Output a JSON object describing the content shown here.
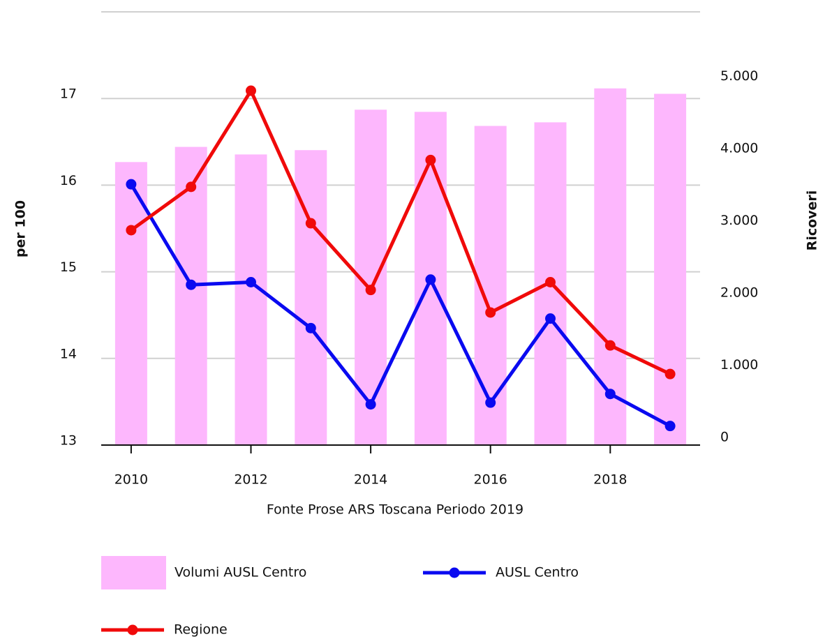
{
  "chart_data": {
    "type": "bar-line",
    "x_label": "Fonte Prose ARS Toscana Periodo 2019",
    "y_label": "per 100",
    "y2_label": "Ricoveri",
    "x": [
      2010,
      2011,
      2012,
      2013,
      2014,
      2015,
      2016,
      2017,
      2018,
      2019
    ],
    "xlim": [
      2009.5,
      2019.5
    ],
    "xticks": [
      2010,
      2012,
      2014,
      2016,
      2018
    ],
    "ylim": [
      13,
      18
    ],
    "yticks": [
      13,
      14,
      15,
      16,
      17
    ],
    "y2lim": [
      0,
      6000
    ],
    "y2ticks": [
      0,
      {
        "value": 1000,
        "label": "1.000"
      },
      {
        "value": 2000,
        "label": "2.000"
      },
      {
        "value": 3000,
        "label": "3.000"
      },
      {
        "value": 4000,
        "label": "4.000"
      },
      {
        "value": 5000,
        "label": "5.000"
      }
    ],
    "grid": true,
    "series": [
      {
        "name": "Volumi AUSL Centro",
        "type": "bar",
        "axis": "y2",
        "color": "#fdb7fd",
        "values": [
          3920,
          4130,
          4025,
          4085,
          4645,
          4615,
          4420,
          4470,
          4940,
          4865
        ]
      },
      {
        "name": "AUSL Centro",
        "type": "line",
        "color": "#0a0af0",
        "values": [
          16.01,
          14.85,
          14.88,
          14.35,
          13.47,
          14.91,
          13.49,
          14.46,
          13.59,
          13.22
        ]
      },
      {
        "name": "Regione",
        "type": "line",
        "color": "#f00a0a",
        "values": [
          15.48,
          15.98,
          17.09,
          15.56,
          14.79,
          16.29,
          14.53,
          14.88,
          14.15,
          13.82
        ]
      }
    ]
  }
}
